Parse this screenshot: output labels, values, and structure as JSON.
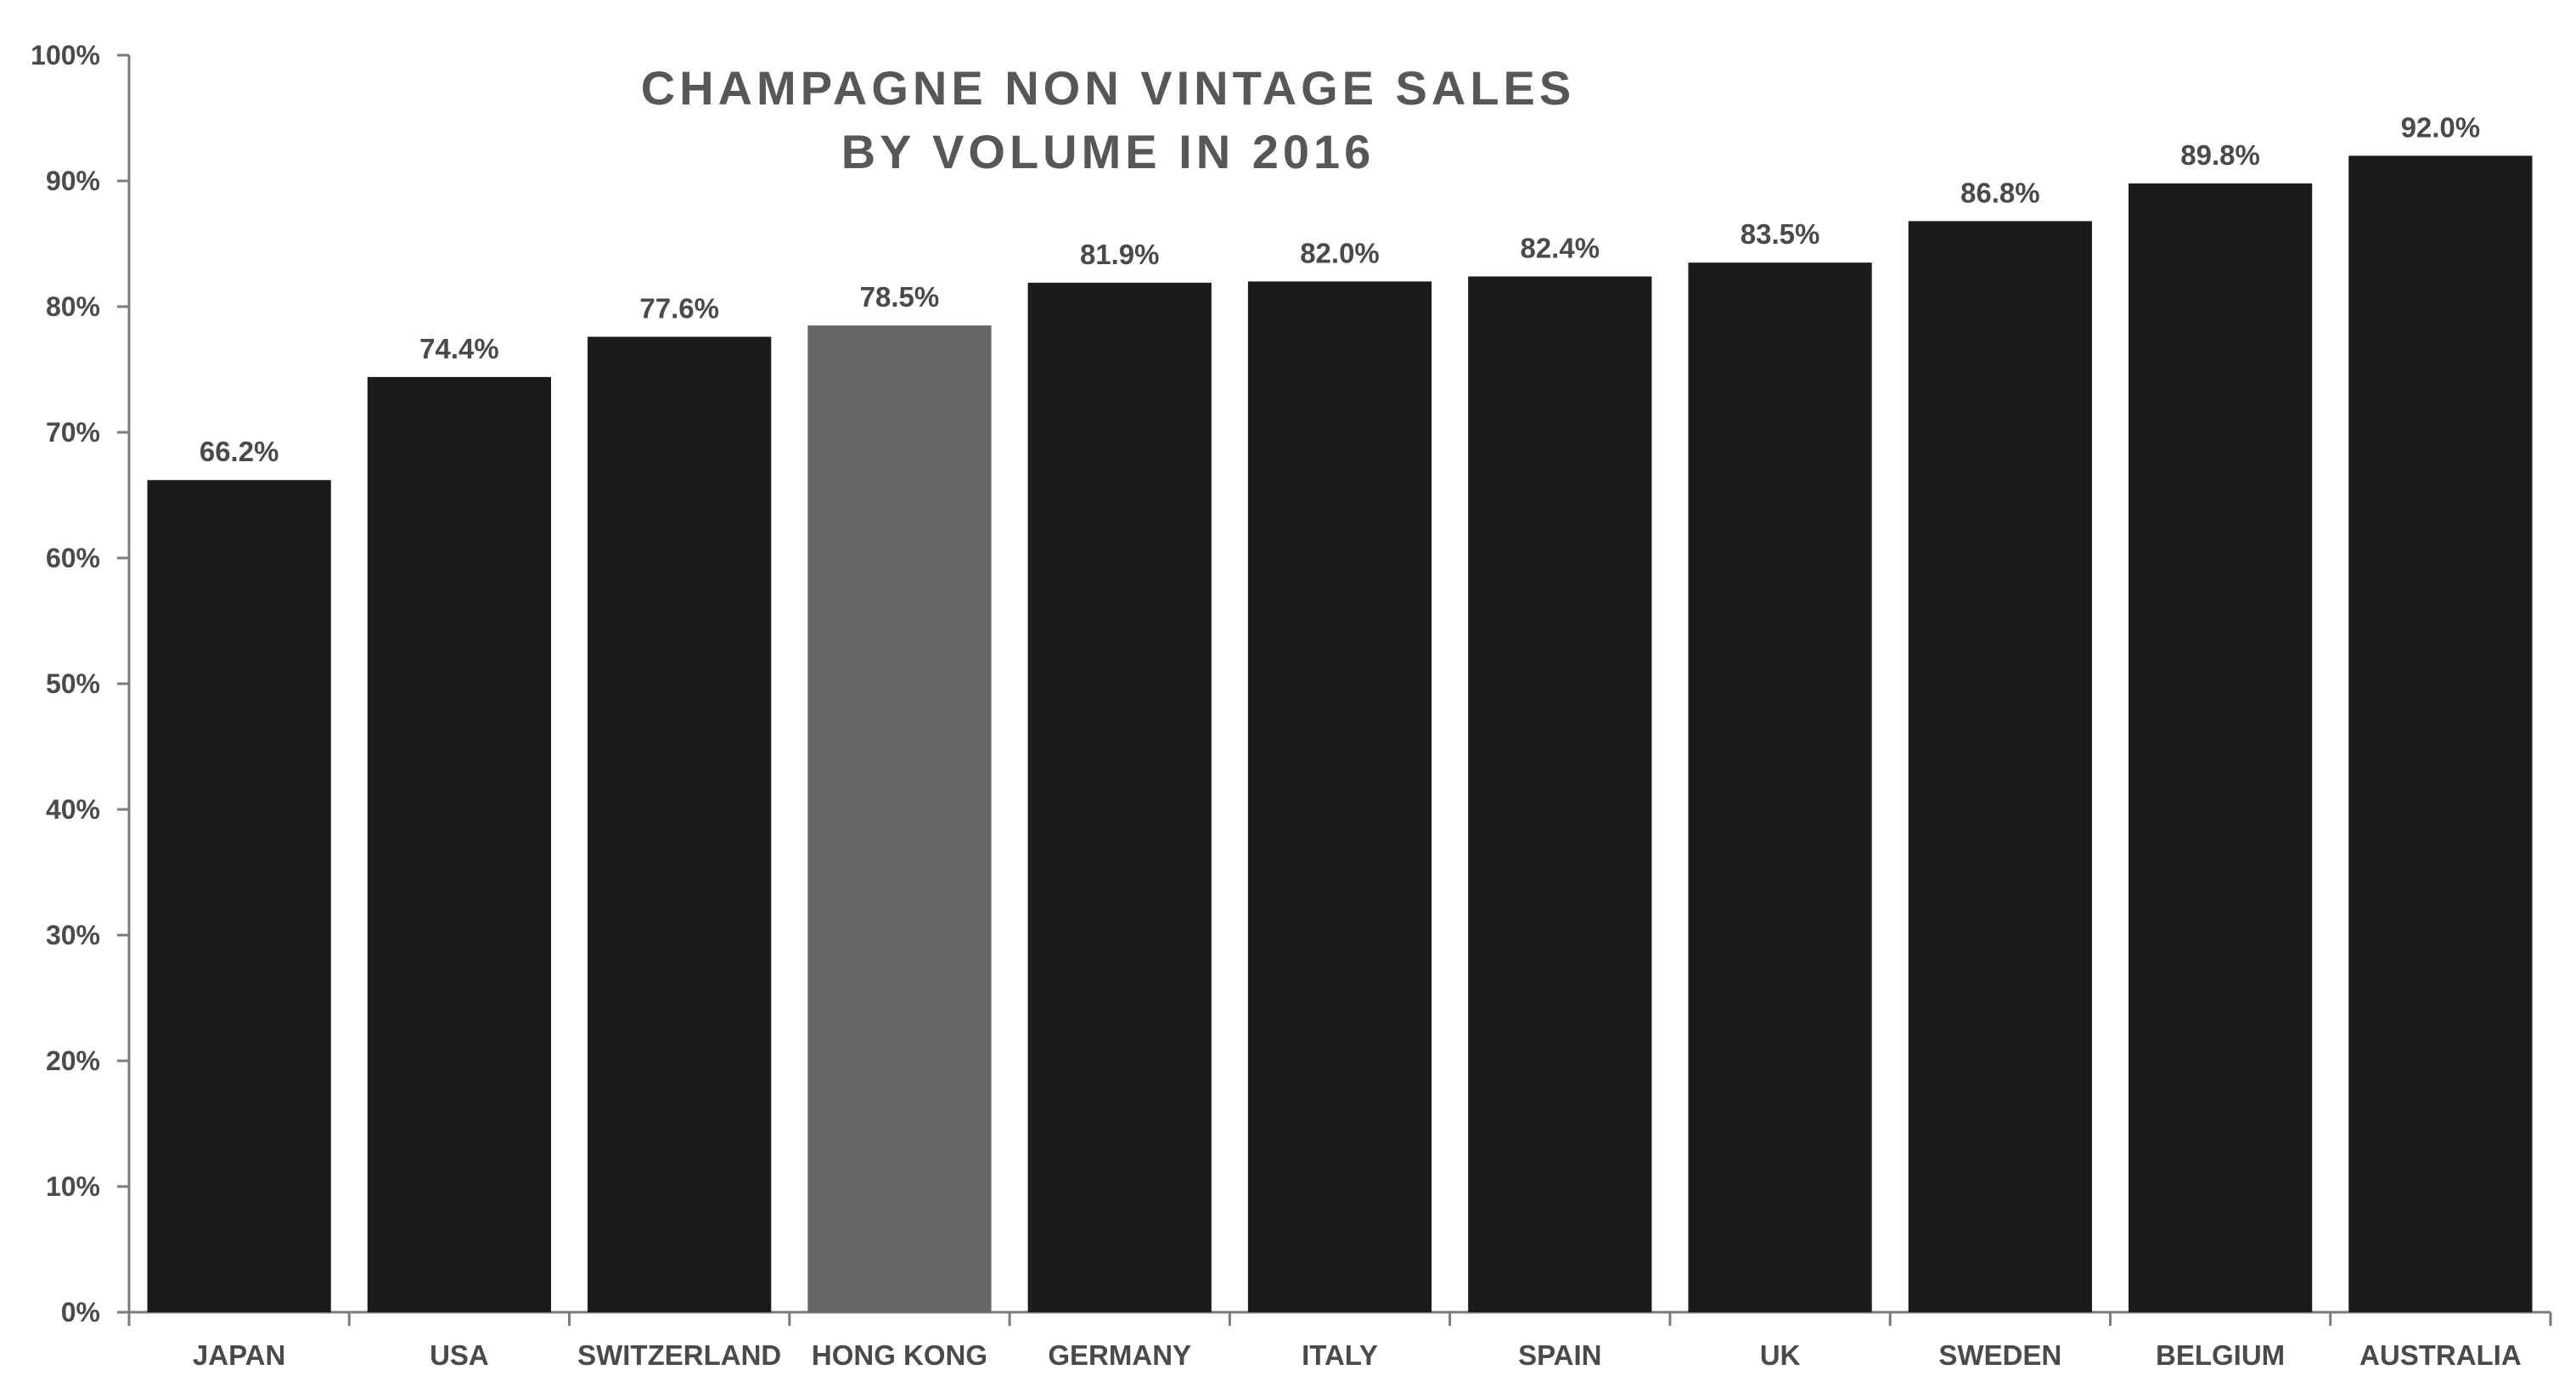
{
  "chart_data": {
    "type": "bar",
    "title_lines": [
      "CHAMPAGNE NON VINTAGE SALES",
      "BY VOLUME IN 2016"
    ],
    "categories": [
      "JAPAN",
      "USA",
      "SWITZERLAND",
      "HONG KONG",
      "GERMANY",
      "ITALY",
      "SPAIN",
      "UK",
      "SWEDEN",
      "BELGIUM",
      "AUSTRALIA"
    ],
    "values": [
      66.2,
      74.4,
      77.6,
      78.5,
      81.9,
      82.0,
      82.4,
      83.5,
      86.8,
      89.8,
      92.0
    ],
    "data_labels": [
      "66.2%",
      "74.4%",
      "77.6%",
      "78.5%",
      "81.9%",
      "82.0%",
      "82.4%",
      "83.5%",
      "86.8%",
      "89.8%",
      "92.0%"
    ],
    "ylim": [
      0,
      100
    ],
    "yticks": [
      0,
      10,
      20,
      30,
      40,
      50,
      60,
      70,
      80,
      90,
      100
    ],
    "ytick_labels": [
      "0%",
      "10%",
      "20%",
      "30%",
      "40%",
      "50%",
      "60%",
      "70%",
      "80%",
      "90%",
      "100%"
    ],
    "xlabel": "",
    "ylabel": "",
    "grid": false,
    "legend": "none",
    "highlight_category": "HONG KONG",
    "colors": {
      "bar": "#1b1b1b",
      "highlight_bar": "#676767",
      "axis": "#7a7a7a",
      "text": "#4a4a4a",
      "title": "#575757"
    }
  }
}
